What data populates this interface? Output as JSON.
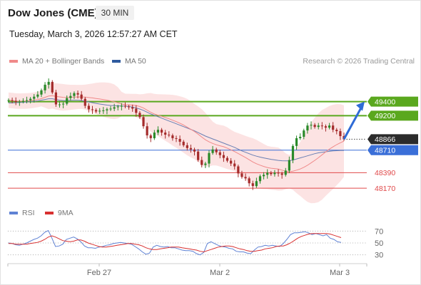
{
  "header": {
    "title": "Dow Jones (CME)",
    "timeframe": "30 MIN",
    "date": "Tuesday, March 3, 2026 12:57:27 AM CET"
  },
  "legend": {
    "ma20": "MA 20 + Bollinger Bands",
    "ma50": "MA 50",
    "copyright": "Research © 2026 Trading Central"
  },
  "rsi_legend": {
    "rsi": "RSI",
    "ma9": "9MA"
  },
  "colors": {
    "up": "#2a8a2a",
    "down": "#a42b2b",
    "resistance": "#5aa81e",
    "support": "#e0494a",
    "pivot": "#3a6fd8",
    "ma20": "#f08a8a",
    "ma50": "#6a7fb3",
    "bollinger": "#fbd9d9",
    "rsi": "#5f82d4",
    "rsi_ma": "#d83030",
    "arrow": "#2f6bd6",
    "last_price_bg": "#2b2b2b"
  },
  "chart_data": [
    {
      "type": "line",
      "title": "Dow Jones (CME)",
      "x_ticks": [
        "Feb 27",
        "Mar 2",
        "Mar 3"
      ],
      "ylim": [
        48050,
        49750
      ],
      "levels": [
        {
          "value": 49400,
          "label": "49400",
          "kind": "resistance"
        },
        {
          "value": 49200,
          "label": "49200",
          "kind": "resistance"
        },
        {
          "value": 48866,
          "label": "48866",
          "kind": "last"
        },
        {
          "value": 48710,
          "label": "48710",
          "kind": "pivot"
        },
        {
          "value": 48390,
          "label": "48390",
          "kind": "support"
        },
        {
          "value": 48170,
          "label": "48170",
          "kind": "support"
        }
      ],
      "series": [
        {
          "name": "MA 20 + Bollinger Bands",
          "close": [
            49420,
            49410,
            49395,
            49400,
            49410,
            49420,
            49440,
            49470,
            49500,
            49560,
            49640,
            49680,
            49530,
            49360,
            49360,
            49370,
            49450,
            49480,
            49520,
            49500,
            49440,
            49340,
            49290,
            49280,
            49260,
            49270,
            49275,
            49290,
            49300,
            49320,
            49330,
            49340,
            49330,
            49320,
            49300,
            49240,
            49180,
            49050,
            48920,
            48880,
            48960,
            49000,
            48960,
            48930,
            48920,
            48880,
            48870,
            48830,
            48780,
            48740,
            48720,
            48690,
            48570,
            48500,
            48520,
            48670,
            48720,
            48680,
            48640,
            48600,
            48560,
            48520,
            48480,
            48380,
            48330,
            48310,
            48240,
            48200,
            48270,
            48340,
            48360,
            48390,
            48370,
            48390,
            48380,
            48360,
            48420,
            48570,
            48770,
            48880,
            48900,
            48990,
            49060,
            49070,
            49040,
            49060,
            49050,
            49030,
            49060,
            49000,
            48980,
            48910,
            48866
          ]
        },
        {
          "name": "MA 50",
          "values": [
            49380,
            49382,
            49385,
            49388,
            49390,
            49395,
            49400,
            49405,
            49410,
            49420,
            49430,
            49440,
            49440,
            49430,
            49420,
            49415,
            49415,
            49418,
            49420,
            49420,
            49415,
            49405,
            49395,
            49385,
            49375,
            49365,
            49358,
            49350,
            49345,
            49342,
            49340,
            49338,
            49335,
            49330,
            49322,
            49310,
            49295,
            49275,
            49250,
            49225,
            49205,
            49185,
            49165,
            49145,
            49125,
            49105,
            49085,
            49065,
            49045,
            49025,
            49005,
            48985,
            48960,
            48935,
            48910,
            48890,
            48870,
            48850,
            48830,
            48810,
            48790,
            48770,
            48750,
            48725,
            48700,
            48680,
            48660,
            48640,
            48625,
            48612,
            48600,
            48590,
            48580,
            48572,
            48565,
            48560,
            48558,
            48560,
            48570,
            48585,
            48600,
            48615,
            48630,
            48645,
            48660,
            48672,
            48680,
            48688,
            48694,
            48700,
            48703,
            48705,
            48705
          ]
        }
      ]
    },
    {
      "type": "line",
      "title": "RSI",
      "y_ticks": [
        70,
        50,
        30
      ],
      "ylim": [
        20,
        80
      ],
      "series": [
        {
          "name": "RSI",
          "values": [
            50,
            49,
            47,
            46,
            48,
            50,
            53,
            56,
            58,
            62,
            68,
            71,
            58,
            44,
            45,
            48,
            56,
            58,
            60,
            57,
            52,
            45,
            42,
            42,
            41,
            43,
            44,
            46,
            47,
            49,
            50,
            51,
            50,
            49,
            48,
            44,
            40,
            35,
            31,
            33,
            43,
            46,
            44,
            43,
            44,
            42,
            42,
            40,
            38,
            37,
            37,
            36,
            32,
            30,
            34,
            49,
            52,
            49,
            46,
            44,
            43,
            41,
            40,
            36,
            35,
            35,
            33,
            32,
            38,
            43,
            44,
            46,
            45,
            46,
            45,
            44,
            49,
            56,
            64,
            67,
            67,
            68,
            69,
            67,
            64,
            66,
            64,
            62,
            64,
            58,
            56,
            52,
            51
          ]
        },
        {
          "name": "9MA",
          "values": [
            49,
            49,
            48,
            48,
            48,
            48,
            49,
            50,
            51,
            53,
            56,
            60,
            62,
            60,
            57,
            54,
            53,
            52,
            53,
            55,
            55,
            53,
            50,
            48,
            46,
            44,
            43,
            43,
            44,
            45,
            46,
            47,
            48,
            49,
            49,
            48,
            47,
            45,
            42,
            40,
            39,
            39,
            40,
            41,
            42,
            43,
            43,
            43,
            42,
            41,
            40,
            39,
            38,
            36,
            35,
            37,
            39,
            41,
            43,
            44,
            45,
            45,
            44,
            42,
            40,
            39,
            37,
            36,
            36,
            37,
            38,
            40,
            41,
            42,
            44,
            45,
            45,
            47,
            50,
            54,
            58,
            61,
            63,
            65,
            66,
            66,
            66,
            66,
            66,
            65,
            63,
            61,
            59
          ]
        }
      ]
    }
  ]
}
